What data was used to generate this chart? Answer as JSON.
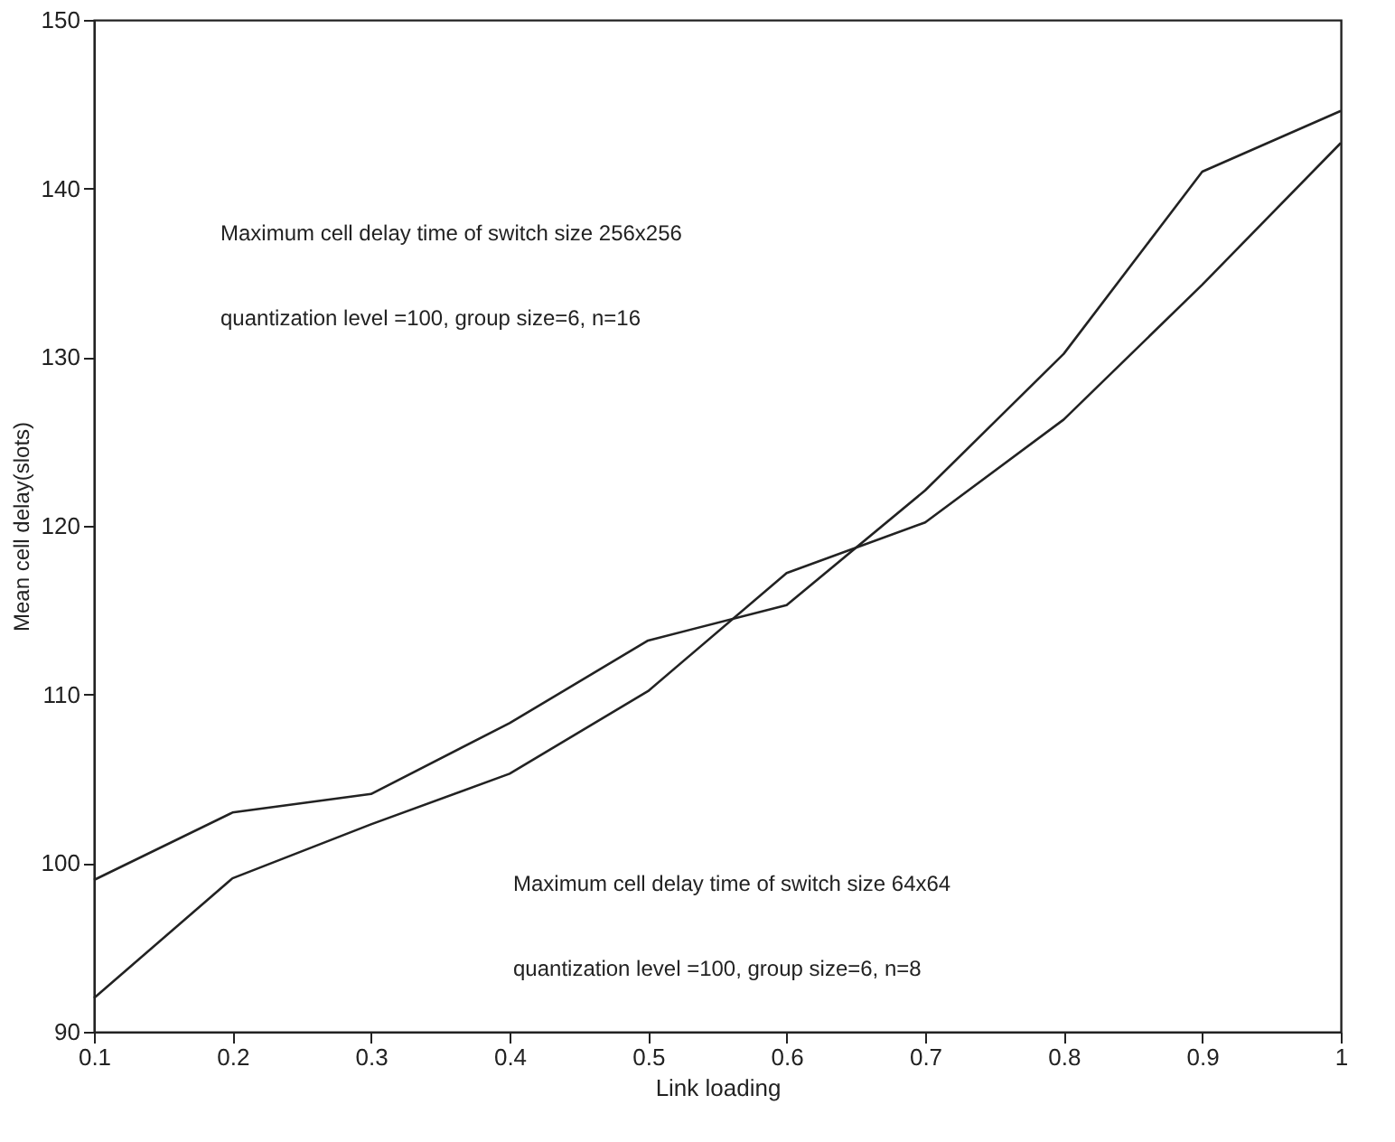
{
  "chart_data": {
    "type": "line",
    "xlabel": "Link loading",
    "ylabel": "Mean cell delay(slots)",
    "x": [
      0.1,
      0.2,
      0.3,
      0.4,
      0.5,
      0.6,
      0.7,
      0.8,
      0.9,
      1.0
    ],
    "series": [
      {
        "color": "#222222",
        "values": [
          99,
          103,
          104.1,
          108.3,
          113.2,
          115.3,
          122.1,
          130.2,
          141,
          144.6
        ]
      },
      {
        "color": "#222222",
        "values": [
          92,
          99.1,
          102.3,
          105.3,
          110.2,
          117.2,
          120.2,
          126.3,
          134.3,
          142.7
        ]
      }
    ],
    "xlim": [
      0.1,
      1
    ],
    "ylim": [
      90,
      150
    ],
    "xticks": [
      0.1,
      0.2,
      0.3,
      0.4,
      0.5,
      0.6,
      0.7,
      0.8,
      0.9,
      1
    ],
    "yticks": [
      90,
      100,
      110,
      120,
      130,
      140,
      150
    ],
    "grid": false,
    "legend": false,
    "marker": "none",
    "line_style": "solid",
    "annotations": [
      "Maximum cell delay time of switch size 256x256",
      "quantization level =100, group size=6, n=16",
      "Maximum cell delay time of switch size 64x64",
      "quantization level =100, group size=6, n=8"
    ]
  }
}
